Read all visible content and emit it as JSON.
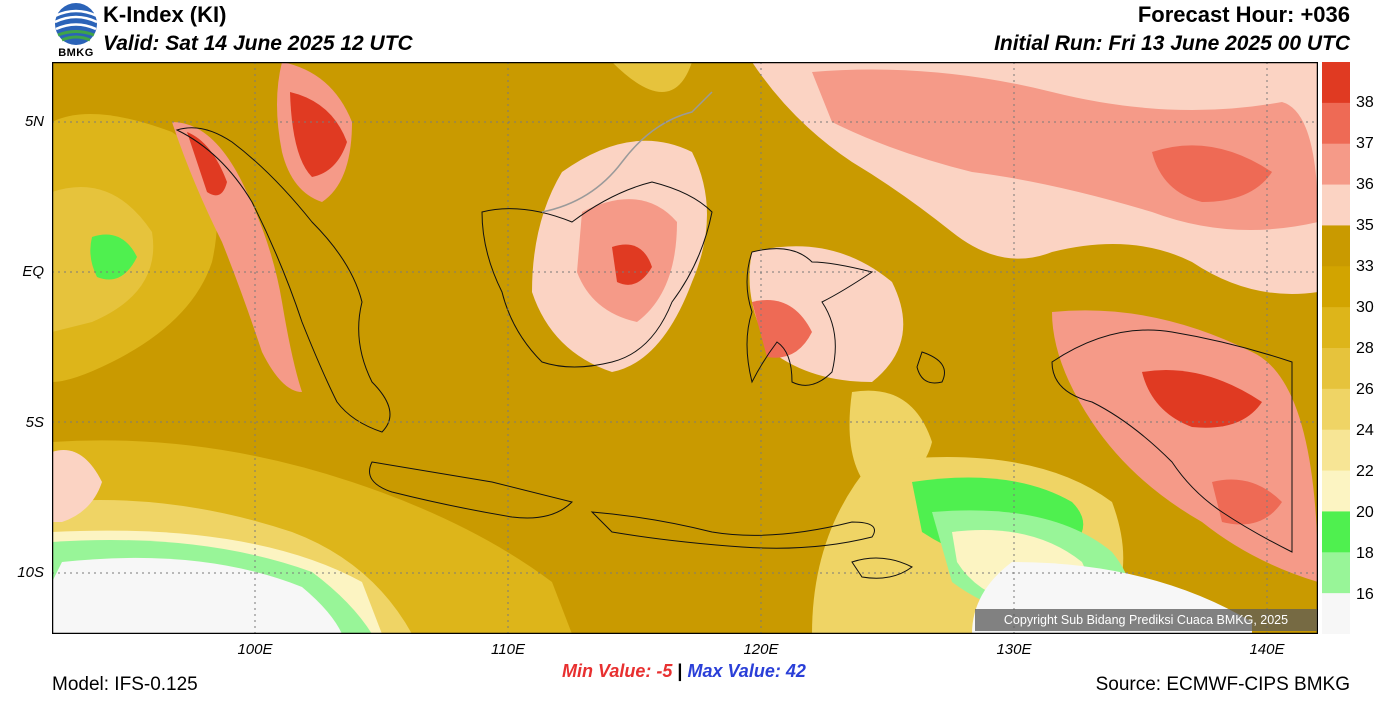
{
  "header": {
    "title": "K-Index (KI)",
    "valid": "Valid: Sat 14 June 2025 12 UTC",
    "forecast_hour": "Forecast Hour: +036",
    "initial_run": "Initial Run: Fri 13 June 2025 00 UTC",
    "logo_text": "BMKG"
  },
  "map": {
    "lat_labels": [
      "5N",
      "EQ",
      "5S",
      "10S"
    ],
    "lon_labels": [
      "100E",
      "110E",
      "120E",
      "130E",
      "140E"
    ],
    "copyright": "Copyright Sub Bidang Prediksi Cuaca BMKG, 2025"
  },
  "colorbar": {
    "labels": [
      "38",
      "37",
      "36",
      "35",
      "33",
      "30",
      "28",
      "26",
      "24",
      "22",
      "20",
      "18",
      "16"
    ],
    "colors": [
      "#e03a22",
      "#ee6a55",
      "#f59a88",
      "#fbd3c3",
      "#c99a00",
      "#d2a400",
      "#ddb51a",
      "#e6c33c",
      "#efd465",
      "#f7e595",
      "#fcf4c2",
      "#4ff04f",
      "#98f598",
      "#f7f7f7"
    ]
  },
  "footer": {
    "model": "Model: IFS-0.125",
    "source": "Source: ECMWF-CIPS BMKG",
    "min_label": "Min Value:",
    "min_value": "-5",
    "separator": "|",
    "max_label": "Max Value:",
    "max_value": "42"
  }
}
